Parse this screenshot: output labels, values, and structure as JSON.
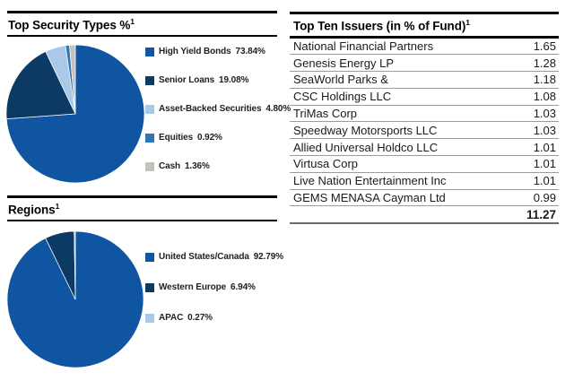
{
  "sections": {
    "security_types": {
      "title": "Top Security Types %",
      "footnote_marker": "1"
    },
    "regions": {
      "title": "Regions",
      "footnote_marker": "1"
    }
  },
  "issuers_table": {
    "title": "Top Ten Issuers (in % of Fund)",
    "footnote_marker": "1",
    "rows": [
      {
        "name": "National Financial Partners",
        "value": "1.65"
      },
      {
        "name": "Genesis Energy LP",
        "value": "1.28"
      },
      {
        "name": "SeaWorld Parks &",
        "value": "1.18"
      },
      {
        "name": "CSC Holdings LLC",
        "value": "1.08"
      },
      {
        "name": "TriMas Corp",
        "value": "1.03"
      },
      {
        "name": "Speedway Motorsports LLC",
        "value": "1.03"
      },
      {
        "name": "Allied Universal Holdco LLC",
        "value": "1.01"
      },
      {
        "name": "Virtusa Corp",
        "value": "1.01"
      },
      {
        "name": "Live Nation Entertainment Inc",
        "value": "1.01"
      },
      {
        "name": "GEMS MENASA Cayman Ltd",
        "value": "0.99"
      }
    ],
    "total": "11.27"
  },
  "colors": {
    "primary_blue": "#0f55a1",
    "dark_navy": "#0d3a64",
    "light_blue": "#aac9e9",
    "medium_blue": "#2e76b6",
    "gray": "#c5c2bb",
    "rule_black": "#000000",
    "row_separator": "#9c9c9c"
  },
  "chart_data": [
    {
      "type": "pie",
      "title": "Top Security Types %",
      "labels": [
        "High Yield Bonds",
        "Senior Loans",
        "Asset-Backed Securities",
        "Equities",
        "Cash"
      ],
      "values": [
        73.84,
        19.08,
        4.8,
        0.92,
        1.36
      ],
      "pct_labels": [
        "73.84%",
        "19.08%",
        "4.80%",
        "0.92%",
        "1.36%"
      ],
      "colors": [
        "#0f55a1",
        "#0d3a64",
        "#aac9e9",
        "#2e76b6",
        "#c5c2bb"
      ],
      "legend_position": "right",
      "start_angle_deg": 0,
      "direction": "clockwise"
    },
    {
      "type": "pie",
      "title": "Regions",
      "labels": [
        "United States/Canada",
        "Western Europe",
        "APAC"
      ],
      "values": [
        92.79,
        6.94,
        0.27
      ],
      "pct_labels": [
        "92.79%",
        "6.94%",
        "0.27%"
      ],
      "colors": [
        "#0f55a1",
        "#0d3a64",
        "#aac9e9"
      ],
      "legend_position": "right",
      "start_angle_deg": 0,
      "direction": "clockwise"
    },
    {
      "type": "table",
      "title": "Top Ten Issuers (in % of Fund)",
      "rows": [
        [
          "National Financial Partners",
          1.65
        ],
        [
          "Genesis Energy LP",
          1.28
        ],
        [
          "SeaWorld Parks &",
          1.18
        ],
        [
          "CSC Holdings LLC",
          1.08
        ],
        [
          "TriMas Corp",
          1.03
        ],
        [
          "Speedway Motorsports LLC",
          1.03
        ],
        [
          "Allied Universal Holdco LLC",
          1.01
        ],
        [
          "Virtusa Corp",
          1.01
        ],
        [
          "Live Nation Entertainment Inc",
          1.01
        ],
        [
          "GEMS MENASA Cayman Ltd",
          0.99
        ]
      ],
      "total": 11.27
    }
  ]
}
